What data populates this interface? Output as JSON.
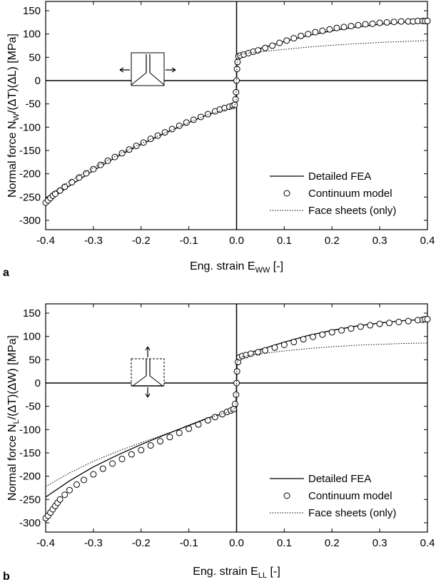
{
  "chart_data": [
    {
      "type": "line",
      "panel_letter": "a",
      "xlabel": {
        "main": "Eng. strain E",
        "sub": "WW",
        "suffix": " [-]"
      },
      "ylabel": {
        "pre": "Normal force N",
        "sub": "W",
        "post": "/(ΔT)(ΔL) [MPa]"
      },
      "xlim": [
        -0.4,
        0.4
      ],
      "ylim": [
        -320,
        170
      ],
      "xticks": [
        -0.4,
        -0.3,
        -0.2,
        -0.1,
        0.0,
        0.1,
        0.2,
        0.3,
        0.4
      ],
      "xtick_labels": [
        "-0.4",
        "-0.3",
        "-0.2",
        "-0.1",
        "0.0",
        "0.1",
        "0.2",
        "0.3",
        "0.4"
      ],
      "yticks": [
        150,
        100,
        50,
        0,
        -50,
        -100,
        -150,
        -200,
        -250,
        -300
      ],
      "ytick_labels": [
        "150",
        "100",
        "50",
        "0",
        "-50",
        "-100",
        "-150",
        "-200",
        "-250",
        "-300"
      ],
      "inset_icon": "horizontal-stretch-cell-icon",
      "legend_position": "bottom-right",
      "series": [
        {
          "name": "Detailed FEA",
          "style": "solid",
          "x": [
            -0.4,
            -0.35,
            -0.3,
            -0.25,
            -0.2,
            -0.15,
            -0.1,
            -0.06,
            -0.03,
            -0.01,
            -0.004,
            -0.001,
            0.0,
            0.001,
            0.004,
            0.01,
            0.03,
            0.06,
            0.1,
            0.15,
            0.2,
            0.25,
            0.3,
            0.35,
            0.4
          ],
          "y": [
            -262,
            -226,
            -193,
            -163,
            -137,
            -113,
            -90,
            -73,
            -64,
            -58,
            -55,
            -45,
            0,
            45,
            54,
            58,
            64,
            72,
            84,
            97,
            107,
            115,
            121,
            125,
            128
          ]
        },
        {
          "name": "Continuum model",
          "style": "circles",
          "x": [
            -0.4,
            -0.395,
            -0.39,
            -0.385,
            -0.38,
            -0.37,
            -0.36,
            -0.345,
            -0.33,
            -0.315,
            -0.3,
            -0.285,
            -0.27,
            -0.255,
            -0.24,
            -0.225,
            -0.21,
            -0.195,
            -0.18,
            -0.165,
            -0.15,
            -0.135,
            -0.12,
            -0.105,
            -0.09,
            -0.075,
            -0.06,
            -0.045,
            -0.035,
            -0.025,
            -0.015,
            -0.008,
            -0.004,
            -0.002,
            -0.001,
            0.0,
            0.001,
            0.002,
            0.004,
            0.008,
            0.015,
            0.025,
            0.035,
            0.045,
            0.06,
            0.075,
            0.09,
            0.105,
            0.12,
            0.135,
            0.15,
            0.165,
            0.18,
            0.195,
            0.21,
            0.225,
            0.24,
            0.255,
            0.27,
            0.285,
            0.3,
            0.315,
            0.33,
            0.345,
            0.36,
            0.37,
            0.38,
            0.39,
            0.395,
            0.4
          ],
          "y": [
            -262,
            -257,
            -252,
            -247,
            -243,
            -236,
            -228,
            -218,
            -208,
            -199,
            -190,
            -181,
            -172,
            -164,
            -156,
            -148,
            -140,
            -133,
            -125,
            -118,
            -111,
            -104,
            -97,
            -90,
            -84,
            -78,
            -72,
            -66,
            -62,
            -59,
            -56,
            -54,
            -52,
            -40,
            -25,
            0,
            25,
            40,
            52,
            54,
            56,
            59,
            62,
            65,
            70,
            75,
            81,
            86,
            91,
            96,
            100,
            104,
            107,
            110,
            113,
            115,
            117,
            119,
            121,
            122,
            124,
            125,
            126,
            127,
            127,
            127,
            128,
            128,
            128,
            128
          ]
        },
        {
          "name": "Face sheets (only)",
          "style": "dotted",
          "x": [
            -0.4,
            -0.35,
            -0.3,
            -0.25,
            -0.2,
            -0.15,
            -0.1,
            -0.06,
            -0.03,
            -0.01,
            -0.004,
            -0.001,
            0.0,
            0.001,
            0.004,
            0.01,
            0.03,
            0.06,
            0.1,
            0.15,
            0.2,
            0.25,
            0.3,
            0.35,
            0.4
          ],
          "y": [
            -252,
            -216,
            -187,
            -160,
            -135,
            -112,
            -90,
            -73,
            -64,
            -58,
            -55,
            -45,
            0,
            45,
            53,
            56,
            60,
            63,
            67,
            72,
            76,
            79,
            82,
            84,
            86
          ]
        }
      ]
    },
    {
      "type": "line",
      "panel_letter": "b",
      "xlabel": {
        "main": "Eng. strain E",
        "sub": "LL",
        "suffix": " [-]"
      },
      "ylabel": {
        "pre": "Normal force N",
        "sub": "L",
        "post": "/(ΔT)(ΔW) [MPa]"
      },
      "xlim": [
        -0.4,
        0.4
      ],
      "ylim": [
        -320,
        170
      ],
      "xticks": [
        -0.4,
        -0.3,
        -0.2,
        -0.1,
        0.0,
        0.1,
        0.2,
        0.3,
        0.4
      ],
      "xtick_labels": [
        "-0.4",
        "-0.3",
        "-0.2",
        "-0.1",
        "0.0",
        "0.1",
        "0.2",
        "0.3",
        "0.4"
      ],
      "yticks": [
        150,
        100,
        50,
        0,
        -50,
        -100,
        -150,
        -200,
        -250,
        -300
      ],
      "ytick_labels": [
        "150",
        "100",
        "50",
        "0",
        "-50",
        "-100",
        "-150",
        "-200",
        "-250",
        "-300"
      ],
      "inset_icon": "vertical-stretch-cell-icon",
      "legend_position": "bottom-right",
      "series": [
        {
          "name": "Detailed FEA",
          "style": "solid",
          "x": [
            -0.4,
            -0.35,
            -0.3,
            -0.25,
            -0.2,
            -0.15,
            -0.1,
            -0.06,
            -0.03,
            -0.01,
            -0.004,
            -0.001,
            0.0,
            0.001,
            0.004,
            0.01,
            0.03,
            0.06,
            0.1,
            0.15,
            0.2,
            0.25,
            0.3,
            0.35,
            0.4
          ],
          "y": [
            -245,
            -210,
            -180,
            -155,
            -132,
            -111,
            -91,
            -75,
            -66,
            -60,
            -57,
            -45,
            0,
            45,
            55,
            59,
            66,
            75,
            88,
            102,
            113,
            122,
            129,
            134,
            137
          ]
        },
        {
          "name": "Continuum model",
          "style": "circles",
          "x": [
            -0.4,
            -0.395,
            -0.39,
            -0.385,
            -0.38,
            -0.375,
            -0.37,
            -0.36,
            -0.35,
            -0.335,
            -0.32,
            -0.3,
            -0.28,
            -0.26,
            -0.24,
            -0.22,
            -0.2,
            -0.18,
            -0.16,
            -0.14,
            -0.12,
            -0.1,
            -0.08,
            -0.06,
            -0.045,
            -0.03,
            -0.02,
            -0.012,
            -0.006,
            -0.003,
            -0.001,
            0.0,
            0.001,
            0.003,
            0.006,
            0.012,
            0.02,
            0.03,
            0.045,
            0.06,
            0.08,
            0.1,
            0.12,
            0.14,
            0.16,
            0.18,
            0.2,
            0.22,
            0.24,
            0.26,
            0.28,
            0.3,
            0.32,
            0.34,
            0.36,
            0.38,
            0.39,
            0.395,
            0.4
          ],
          "y": [
            -290,
            -285,
            -278,
            -271,
            -264,
            -257,
            -250,
            -240,
            -230,
            -218,
            -208,
            -196,
            -184,
            -173,
            -163,
            -153,
            -144,
            -134,
            -125,
            -116,
            -107,
            -98,
            -89,
            -80,
            -73,
            -67,
            -62,
            -59,
            -56,
            -45,
            -25,
            0,
            25,
            45,
            55,
            58,
            60,
            63,
            66,
            70,
            76,
            82,
            88,
            94,
            99,
            104,
            109,
            113,
            117,
            121,
            124,
            127,
            129,
            131,
            133,
            135,
            136,
            137,
            137
          ]
        },
        {
          "name": "Face sheets (only)",
          "style": "dotted",
          "x": [
            -0.4,
            -0.35,
            -0.3,
            -0.25,
            -0.2,
            -0.15,
            -0.1,
            -0.06,
            -0.03,
            -0.01,
            -0.004,
            -0.001,
            0.0,
            0.001,
            0.004,
            0.01,
            0.03,
            0.06,
            0.1,
            0.15,
            0.2,
            0.25,
            0.3,
            0.35,
            0.4
          ],
          "y": [
            -222,
            -193,
            -168,
            -147,
            -128,
            -110,
            -92,
            -76,
            -66,
            -60,
            -57,
            -45,
            0,
            45,
            53,
            56,
            60,
            64,
            69,
            74,
            78,
            81,
            83,
            85,
            86
          ]
        }
      ]
    }
  ]
}
